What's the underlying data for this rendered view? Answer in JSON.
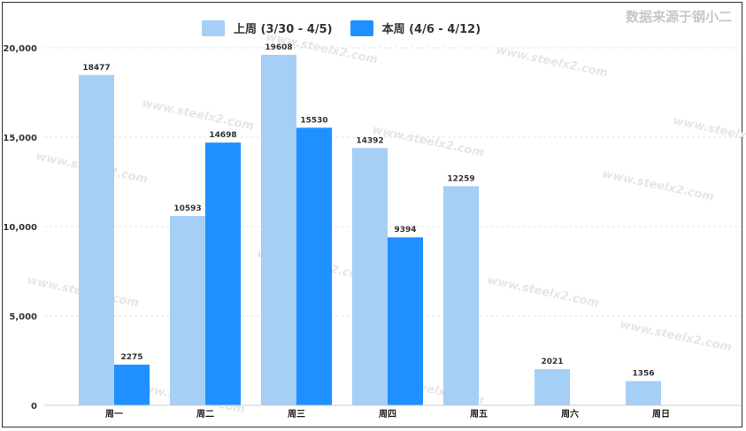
{
  "source_note": "数据来源于钢小二",
  "colors": {
    "last_week": "#a6cff5",
    "this_week": "#1e90ff"
  },
  "chart_data": {
    "type": "bar",
    "categories": [
      "周一",
      "周二",
      "周三",
      "周四",
      "周五",
      "周六",
      "周日"
    ],
    "series": [
      {
        "name": "上周 (3/30 - 4/5)",
        "values": [
          18477,
          10593,
          19608,
          14392,
          12259,
          2021,
          1356
        ]
      },
      {
        "name": "本周 (4/6 - 4/12)",
        "values": [
          2275,
          14698,
          15530,
          9394,
          null,
          null,
          null
        ]
      }
    ],
    "yticks": [
      "0",
      "5,000",
      "10,000",
      "15,000",
      "20,000"
    ],
    "ylim": [
      0,
      20000
    ],
    "legend_position": "top",
    "grid": true,
    "watermark": "www.steelx2.com"
  }
}
